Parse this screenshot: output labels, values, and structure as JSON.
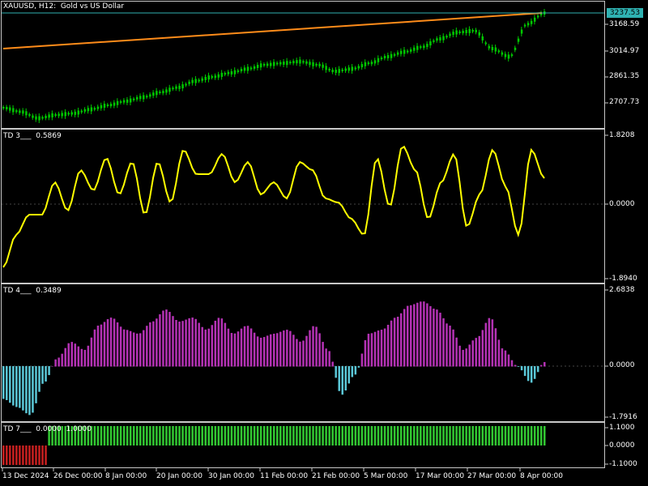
{
  "main": {
    "symbol_title": "XAUUSD, H12:  Gold vs US Dollar",
    "current_price": "3237.53",
    "price_levels": [
      "3168.59",
      "3014.97",
      "2861.35",
      "2707.73"
    ],
    "colors": {
      "candles": "#00c800",
      "trendline": "#ff8c1a",
      "price_line": "#2fb2b2"
    }
  },
  "td3": {
    "label": "TD 3___  0.5869",
    "levels": [
      "1.8208",
      "0.0000",
      "-1.8940"
    ],
    "line_color": "#ffff00"
  },
  "td4": {
    "label": "TD 4___  0.3489",
    "levels": [
      "2.6838",
      "0.0000",
      "-1.7916"
    ],
    "colors": {
      "positive": "#5bc8d8",
      "negative": "#b432b4"
    }
  },
  "td7": {
    "label": "TD 7___  0.0000  1.0000",
    "levels": [
      "1.1000",
      "0.0000",
      "-1.1000"
    ],
    "colors": {
      "positive": "#32c832",
      "negative": "#c82020"
    }
  },
  "time_axis": {
    "labels": [
      "13 Dec 2024",
      "26 Dec 00:00",
      "8 Jan 00:00",
      "20 Jan 00:00",
      "30 Jan 00:00",
      "11 Feb 00:00",
      "21 Feb 00:00",
      "5 Mar 00:00",
      "17 Mar 00:00",
      "27 Mar 00:00",
      "8 Apr 00:00"
    ]
  }
}
